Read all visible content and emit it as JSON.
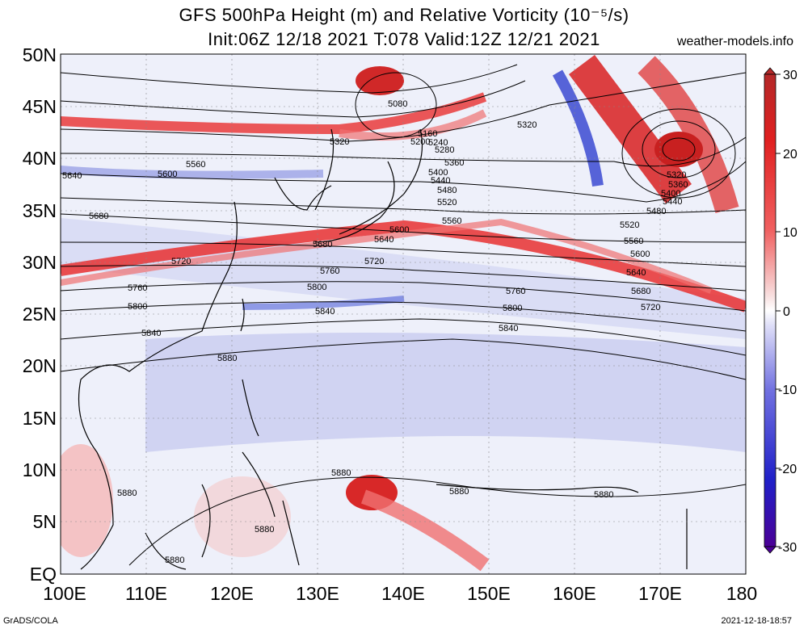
{
  "header": {
    "title": "GFS 500hPa Height (m) and Relative Vorticity (10⁻⁵/s)",
    "subtitle": "Init:06Z 12/18 2021 T:078 Valid:12Z 12/21 2021",
    "source": "weather-models.info"
  },
  "map": {
    "lon_range": [
      100,
      180
    ],
    "lat_range": [
      0,
      50
    ],
    "lat_labels": [
      "50N",
      "45N",
      "40N",
      "35N",
      "30N",
      "25N",
      "20N",
      "15N",
      "10N",
      "5N",
      "EQ"
    ],
    "lon_labels": [
      "100E",
      "110E",
      "120E",
      "130E",
      "140E",
      "150E",
      "160E",
      "170E",
      "180"
    ],
    "contour_labels": [
      "5080",
      "5160",
      "5200",
      "5240",
      "5280",
      "5320",
      "5320",
      "5320",
      "5360",
      "5360",
      "5400",
      "5400",
      "5440",
      "5440",
      "5480",
      "5480",
      "5520",
      "5520",
      "5560",
      "5560",
      "5560",
      "5600",
      "5600",
      "5600",
      "5640",
      "5640",
      "5640",
      "5680",
      "5680",
      "5680",
      "5720",
      "5720",
      "5720",
      "5760",
      "5760",
      "5760",
      "5800",
      "5800",
      "5800",
      "5840",
      "5840",
      "5840",
      "5880",
      "5880",
      "5880",
      "5880",
      "5880",
      "5880",
      "5880"
    ]
  },
  "colorbar": {
    "ticks": [
      "30",
      "20",
      "10",
      "0",
      "-10",
      "-20",
      "-30"
    ],
    "colors": [
      "#b42828",
      "#e02020",
      "#f06060",
      "#f8d0d0",
      "#ffffff",
      "#d0d0f8",
      "#7070e0",
      "#2020c8",
      "#4b0096"
    ]
  },
  "footer": {
    "left": "GrADS/COLA",
    "right": "2021-12-18-18:57"
  }
}
